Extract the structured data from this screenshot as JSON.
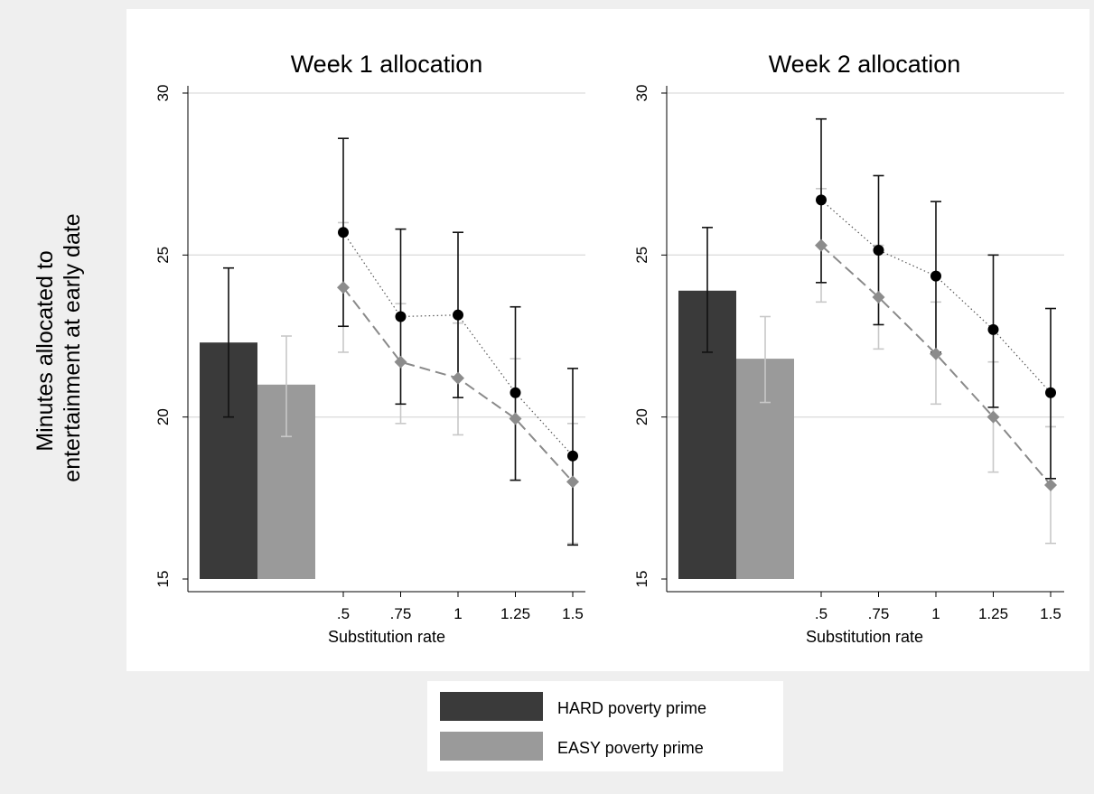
{
  "ylabel_lines": [
    "Minutes allocated to",
    "entertainment at early date"
  ],
  "legend": [
    {
      "label": "HARD poverty prime",
      "color": "#3a3a3a"
    },
    {
      "label": "EASY poverty prime",
      "color": "#9a9a9a"
    }
  ],
  "colors": {
    "hard": "#3a3a3a",
    "easy": "#9a9a9a",
    "hard_ci": "#111111",
    "easy_ci": "#c8c8c8",
    "page_bg": "#efefef",
    "panel_bg": "#ffffff",
    "grid": "#dddddd"
  },
  "chart_data": [
    {
      "type": "bar+line",
      "title": "Week 1 allocation",
      "xlabel": "Substitution rate",
      "ylabel": "Minutes allocated to entertainment at early date",
      "ylim": [
        15,
        30
      ],
      "yticks": [
        15,
        20,
        25,
        30
      ],
      "grid": true,
      "x": [
        ".5",
        ".75",
        "1",
        "1.25",
        "1.5"
      ],
      "bars": [
        {
          "name": "HARD poverty prime",
          "value": 22.3,
          "ci": [
            20.0,
            24.6
          ]
        },
        {
          "name": "EASY poverty prime",
          "value": 21.0,
          "ci": [
            19.4,
            22.5
          ]
        }
      ],
      "series": [
        {
          "name": "HARD poverty prime",
          "values": [
            25.7,
            23.1,
            23.15,
            20.75,
            18.8
          ],
          "ci_low": [
            22.8,
            20.4,
            20.6,
            18.05,
            16.05
          ],
          "ci_high": [
            28.6,
            25.8,
            25.7,
            23.4,
            21.5
          ]
        },
        {
          "name": "EASY poverty prime",
          "values": [
            24.0,
            21.7,
            21.2,
            19.95,
            18.0
          ],
          "ci_low": [
            22.0,
            19.8,
            19.45,
            18.05,
            16.1
          ],
          "ci_high": [
            26.0,
            23.5,
            22.9,
            21.8,
            19.8
          ]
        }
      ]
    },
    {
      "type": "bar+line",
      "title": "Week 2 allocation",
      "xlabel": "Substitution rate",
      "ylabel": "Minutes allocated to entertainment at early date",
      "ylim": [
        15,
        30
      ],
      "yticks": [
        15,
        20,
        25,
        30
      ],
      "grid": true,
      "x": [
        ".5",
        ".75",
        "1",
        "1.25",
        "1.5"
      ],
      "bars": [
        {
          "name": "HARD poverty prime",
          "value": 23.9,
          "ci": [
            22.0,
            25.85
          ]
        },
        {
          "name": "EASY poverty prime",
          "value": 21.8,
          "ci": [
            20.45,
            23.1
          ]
        }
      ],
      "series": [
        {
          "name": "HARD poverty prime",
          "values": [
            26.7,
            25.15,
            24.35,
            22.7,
            20.75
          ],
          "ci_low": [
            24.15,
            22.85,
            22.0,
            20.3,
            18.1
          ],
          "ci_high": [
            29.2,
            27.45,
            26.65,
            25.0,
            23.35
          ]
        },
        {
          "name": "EASY poverty prime",
          "values": [
            25.3,
            23.7,
            21.95,
            20.0,
            17.9
          ],
          "ci_low": [
            23.55,
            22.1,
            20.4,
            18.3,
            16.1
          ],
          "ci_high": [
            27.05,
            25.3,
            23.55,
            21.7,
            19.7
          ]
        }
      ]
    }
  ]
}
